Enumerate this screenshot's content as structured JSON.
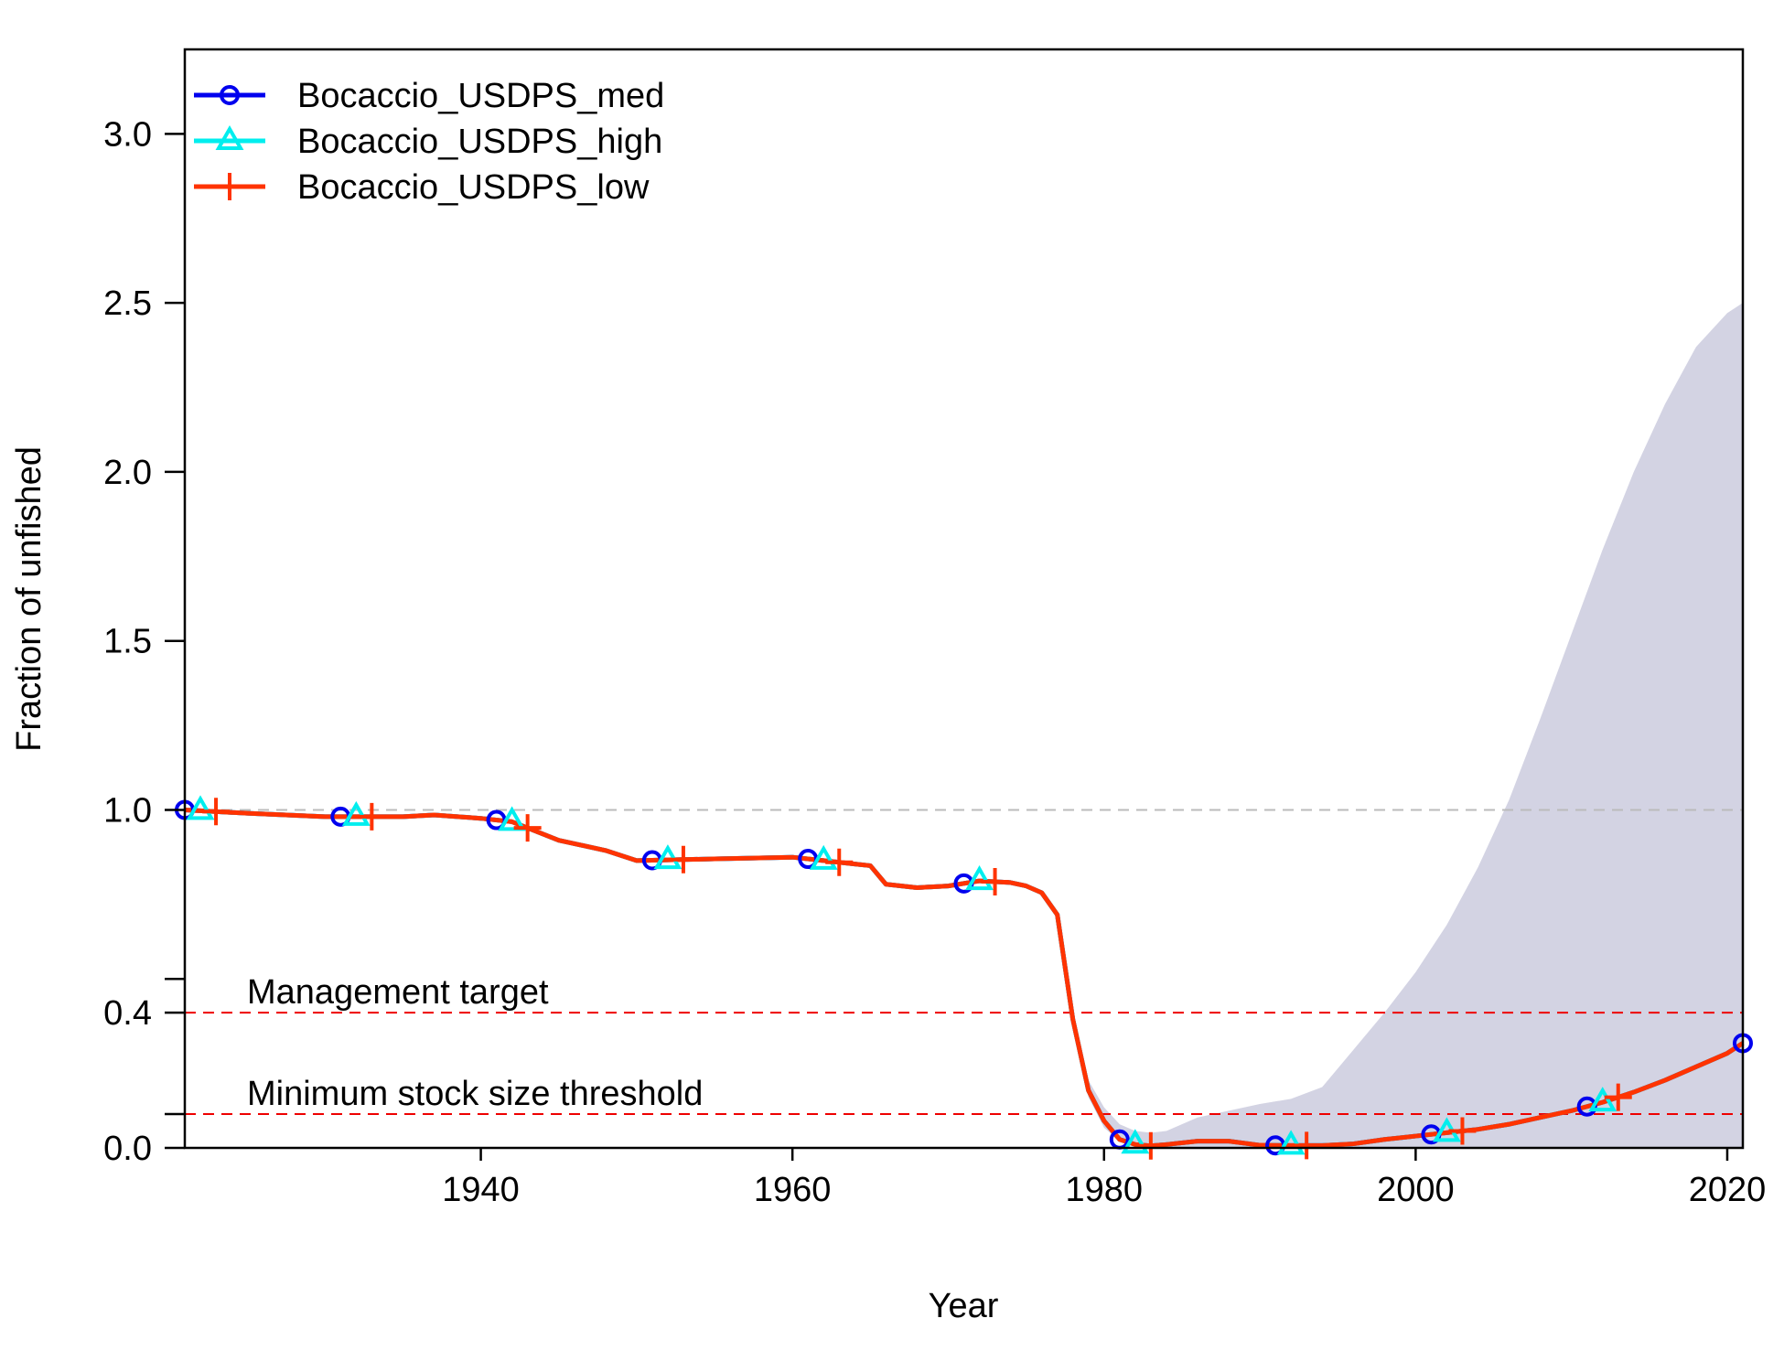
{
  "chart_data": {
    "type": "line",
    "xlabel": "Year",
    "ylabel": "Fraction of unfished",
    "xlim": [
      1921,
      2021
    ],
    "ylim": [
      0,
      3.25
    ],
    "x_ticks": [
      1940,
      1960,
      1980,
      2000,
      2020
    ],
    "y_ticks": [
      0.0,
      0.4,
      1.0,
      1.5,
      2.0,
      2.5,
      3.0
    ],
    "y_minor_ticks": [
      0.1,
      0.5
    ],
    "x": [
      1921,
      1925,
      1930,
      1935,
      1937,
      1940,
      1942,
      1945,
      1948,
      1950,
      1955,
      1960,
      1962,
      1964,
      1965,
      1966,
      1968,
      1970,
      1972,
      1974,
      1975,
      1976,
      1977,
      1978,
      1979,
      1980,
      1981,
      1982,
      1983,
      1984,
      1986,
      1988,
      1990,
      1992,
      1994,
      1996,
      1998,
      2000,
      2002,
      2004,
      2006,
      2008,
      2010,
      2012,
      2014,
      2016,
      2018,
      2020,
      2021
    ],
    "series": [
      {
        "name": "Bocaccio_USDPS_med",
        "color": "#0000ee",
        "marker": "circle",
        "values": [
          1.0,
          0.99,
          0.98,
          0.98,
          0.985,
          0.975,
          0.965,
          0.91,
          0.88,
          0.85,
          0.855,
          0.86,
          0.85,
          0.84,
          0.835,
          0.78,
          0.77,
          0.775,
          0.79,
          0.785,
          0.775,
          0.755,
          0.69,
          0.38,
          0.17,
          0.08,
          0.025,
          0.01,
          0.006,
          0.01,
          0.02,
          0.02,
          0.008,
          0.007,
          0.007,
          0.012,
          0.025,
          0.035,
          0.045,
          0.055,
          0.07,
          0.09,
          0.11,
          0.135,
          0.165,
          0.2,
          0.24,
          0.28,
          0.31
        ]
      },
      {
        "name": "Bocaccio_USDPS_high",
        "color": "#00eeee",
        "marker": "triangle",
        "values": [
          1.0,
          0.99,
          0.98,
          0.98,
          0.985,
          0.975,
          0.965,
          0.91,
          0.88,
          0.85,
          0.855,
          0.86,
          0.85,
          0.84,
          0.835,
          0.78,
          0.77,
          0.775,
          0.79,
          0.785,
          0.775,
          0.755,
          0.69,
          0.38,
          0.17,
          0.08,
          0.025,
          0.01,
          0.006,
          0.01,
          0.02,
          0.02,
          0.008,
          0.007,
          0.007,
          0.012,
          0.025,
          0.035,
          0.045,
          0.055,
          0.07,
          0.09,
          0.11,
          0.135,
          0.165,
          0.2,
          0.24,
          0.28,
          0.31
        ]
      },
      {
        "name": "Bocaccio_USDPS_low",
        "color": "#ff3300",
        "marker": "plus",
        "values": [
          1.0,
          0.99,
          0.98,
          0.98,
          0.985,
          0.975,
          0.965,
          0.91,
          0.88,
          0.85,
          0.855,
          0.86,
          0.85,
          0.84,
          0.835,
          0.78,
          0.77,
          0.775,
          0.79,
          0.785,
          0.775,
          0.755,
          0.69,
          0.38,
          0.17,
          0.08,
          0.025,
          0.01,
          0.006,
          0.01,
          0.02,
          0.02,
          0.008,
          0.007,
          0.007,
          0.012,
          0.025,
          0.035,
          0.045,
          0.055,
          0.07,
          0.09,
          0.11,
          0.135,
          0.165,
          0.2,
          0.24,
          0.28,
          0.31
        ]
      }
    ],
    "marker_years": {
      "Bocaccio_USDPS_med": [
        1921,
        1931,
        1941,
        1951,
        1961,
        1971,
        1981,
        1991,
        2001,
        2011,
        2021
      ],
      "Bocaccio_USDPS_high": [
        1922,
        1932,
        1942,
        1952,
        1962,
        1972,
        1982,
        1992,
        2002,
        2012
      ],
      "Bocaccio_USDPS_low": [
        1923,
        1933,
        1943,
        1953,
        1963,
        1973,
        1983,
        1993,
        2003,
        2013
      ]
    },
    "interval": {
      "color": "#d3d3e3",
      "x": [
        1978,
        1979,
        1980,
        1981,
        1982,
        1983,
        1984,
        1985,
        1986,
        1988,
        1990,
        1992,
        1994,
        1996,
        1998,
        2000,
        2002,
        2004,
        2006,
        2008,
        2010,
        2012,
        2014,
        2016,
        2018,
        2020,
        2021
      ],
      "lower": [
        0.35,
        0.15,
        0.06,
        0.02,
        0.005,
        0.0,
        0.0,
        0.0,
        0.0,
        0.0,
        0.0,
        0.0,
        0.0,
        0.0,
        0.0,
        0.0,
        0.0,
        0.0,
        0.0,
        0.0,
        0.0,
        0.0,
        0.0,
        0.0,
        0.0,
        0.0,
        0.0
      ],
      "upper": [
        0.41,
        0.2,
        0.12,
        0.07,
        0.05,
        0.045,
        0.05,
        0.07,
        0.09,
        0.11,
        0.13,
        0.145,
        0.18,
        0.29,
        0.4,
        0.52,
        0.66,
        0.83,
        1.03,
        1.27,
        1.52,
        1.77,
        2.0,
        2.2,
        2.37,
        2.47,
        2.5
      ]
    },
    "reference_lines": [
      {
        "y": 1.0,
        "color": "#bbbbbb",
        "label": ""
      },
      {
        "y": 0.4,
        "color": "#ee0000",
        "label": "Management target"
      },
      {
        "y": 0.1,
        "color": "#ee0000",
        "label": "Minimum stock size threshold"
      }
    ],
    "legend_position": "top-left",
    "grid": false
  }
}
